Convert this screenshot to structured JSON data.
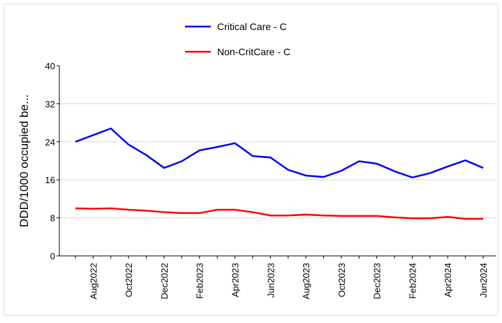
{
  "chart_data": {
    "type": "line",
    "y_label": "DDD/1000  occupied be...",
    "categories": [
      null,
      "Aug2022",
      null,
      "Oct2022",
      null,
      "Dec2022",
      null,
      "Feb2023",
      null,
      "Apr2023",
      null,
      "Jun2023",
      null,
      "Aug2023",
      null,
      "Oct2023",
      null,
      "Dec2023",
      null,
      "Feb2024",
      null,
      "Apr2024",
      null,
      "Jun2024"
    ],
    "series": [
      {
        "name": "Critical Care - C",
        "color": "#0000ff",
        "values": [
          24.0,
          25.4,
          26.8,
          23.4,
          21.2,
          18.5,
          19.9,
          22.2,
          22.9,
          23.7,
          21.0,
          20.7,
          18.1,
          16.9,
          16.6,
          17.9,
          19.9,
          19.4,
          17.8,
          16.5,
          17.4,
          18.8,
          20.1,
          18.5
        ]
      },
      {
        "name": "Non-CritCare - C",
        "color": "#ff0000",
        "values": [
          10.0,
          9.9,
          10.0,
          9.7,
          9.5,
          9.2,
          9.0,
          9.0,
          9.7,
          9.7,
          9.2,
          8.5,
          8.5,
          8.7,
          8.5,
          8.4,
          8.4,
          8.4,
          8.1,
          7.9,
          7.9,
          8.2,
          7.8,
          7.8
        ]
      }
    ],
    "ylim": [
      0,
      40
    ],
    "yticks": [
      0,
      8,
      16,
      24,
      32,
      40
    ],
    "grid": true
  }
}
